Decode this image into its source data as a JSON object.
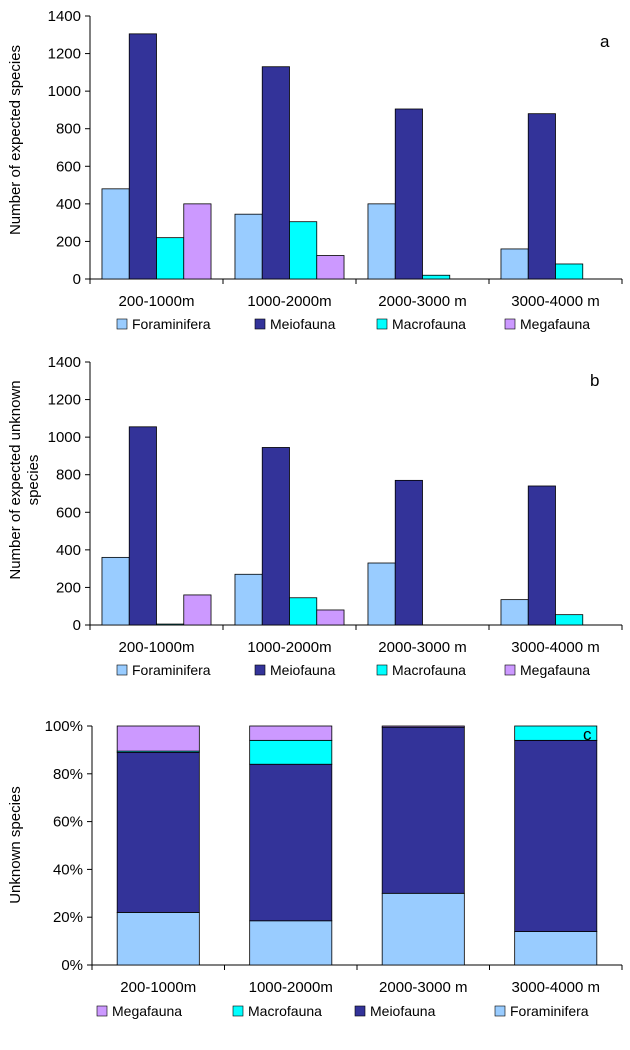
{
  "colors": {
    "Foraminifera": "#99ccff",
    "Meiofauna": "#333399",
    "Macrofauna": "#00ffff",
    "Megafauna": "#cc99ff",
    "axis": "#000000"
  },
  "chart_data": [
    {
      "type": "bar",
      "panel_label": "a",
      "ylabel": "Number of expected species",
      "ylim": [
        0,
        1400
      ],
      "yticks": [
        "0",
        "200",
        "400",
        "600",
        "800",
        "1000",
        "1200",
        "1400"
      ],
      "categories": [
        "200-1000m",
        "1000-2000m",
        "2000-3000 m",
        "3000-4000 m"
      ],
      "series": [
        {
          "name": "Foraminifera",
          "values": [
            480,
            345,
            400,
            160
          ]
        },
        {
          "name": "Meiofauna",
          "values": [
            1305,
            1130,
            905,
            880
          ]
        },
        {
          "name": "Macrofauna",
          "values": [
            220,
            305,
            20,
            80
          ]
        },
        {
          "name": "Megafauna",
          "values": [
            400,
            125,
            0,
            0
          ]
        }
      ],
      "legend": [
        "Foraminifera",
        "Meiofauna",
        "Macrofauna",
        "Megafauna"
      ],
      "grid": false
    },
    {
      "type": "bar",
      "panel_label": "b",
      "ylabel_lines": [
        "Number of expected unknown",
        "species"
      ],
      "ylim": [
        0,
        1400
      ],
      "yticks": [
        "0",
        "200",
        "400",
        "600",
        "800",
        "1000",
        "1200",
        "1400"
      ],
      "categories": [
        "200-1000m",
        "1000-2000m",
        "2000-3000 m",
        "3000-4000 m"
      ],
      "series": [
        {
          "name": "Foraminifera",
          "values": [
            360,
            270,
            330,
            135
          ]
        },
        {
          "name": "Meiofauna",
          "values": [
            1055,
            945,
            770,
            740
          ]
        },
        {
          "name": "Macrofauna",
          "values": [
            5,
            145,
            0,
            55
          ]
        },
        {
          "name": "Megafauna",
          "values": [
            160,
            80,
            0,
            0
          ]
        }
      ],
      "legend": [
        "Foraminifera",
        "Meiofauna",
        "Macrofauna",
        "Megafauna"
      ],
      "grid": false
    },
    {
      "type": "bar",
      "stacked": true,
      "panel_label": "c",
      "ylabel": "Unknown species",
      "ylim": [
        0,
        100
      ],
      "yticks": [
        "0%",
        "20%",
        "40%",
        "60%",
        "80%",
        "100%"
      ],
      "categories": [
        "200-1000m",
        "1000-2000m",
        "2000-3000 m",
        "3000-4000 m"
      ],
      "series": [
        {
          "name": "Foraminifera",
          "values": [
            22,
            18.5,
            30,
            14
          ]
        },
        {
          "name": "Meiofauna",
          "values": [
            67,
            65.5,
            69.5,
            80
          ]
        },
        {
          "name": "Macrofauna",
          "values": [
            0.5,
            10,
            0,
            6
          ]
        },
        {
          "name": "Megafauna",
          "values": [
            10.5,
            6,
            0.5,
            0
          ]
        }
      ],
      "legend": [
        "Megafauna",
        "Macrofauna",
        "Meiofauna",
        "Foraminifera"
      ],
      "grid": false
    }
  ]
}
